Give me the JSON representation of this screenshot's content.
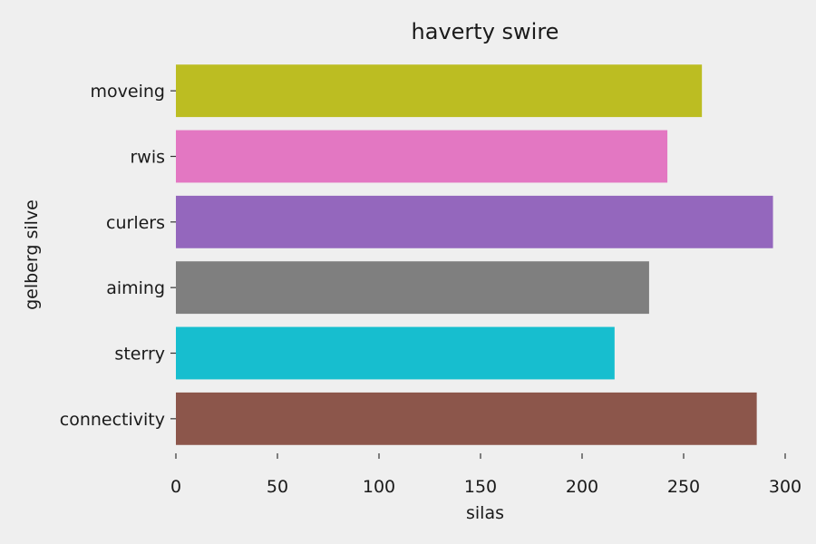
{
  "chart_data": {
    "type": "bar",
    "orientation": "horizontal",
    "title": "haverty swire",
    "xlabel": "silas",
    "ylabel": "gelberg silve",
    "categories": [
      "moveing",
      "rwis",
      "curlers",
      "aiming",
      "sterry",
      "connectivity"
    ],
    "values": [
      259,
      242,
      294,
      233,
      216,
      286
    ],
    "colors": [
      "#bcbd22",
      "#e377c2",
      "#9467bd",
      "#7f7f7f",
      "#17becf",
      "#8c564b"
    ],
    "xlim": [
      0,
      300
    ],
    "xticks": [
      0,
      50,
      100,
      150,
      200,
      250,
      300
    ],
    "grid": false,
    "background": "#efefef"
  }
}
